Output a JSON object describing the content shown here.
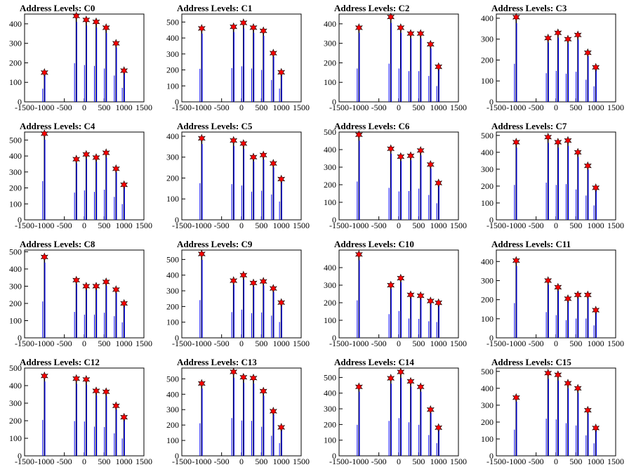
{
  "colors": {
    "histogram": "#0000ff",
    "marker": "#ff0000",
    "marker_outline": "#000000",
    "axes": "#000000",
    "background": "#ffffff"
  },
  "chart_data": [
    {
      "type": "histogram",
      "title": "Address Levels: C0",
      "xlim": [
        -1500,
        1500
      ],
      "ylim": [
        0,
        450
      ],
      "xticks": [
        -1500,
        -1000,
        -500,
        0,
        500,
        1000,
        1500
      ],
      "yticks": [
        0,
        100,
        200,
        300,
        400
      ],
      "peaks_x": [
        -1000,
        -200,
        50,
        300,
        550,
        800,
        1000
      ],
      "peaks_y": [
        150,
        440,
        420,
        410,
        380,
        300,
        160
      ],
      "spike_fraction": 0.45
    },
    {
      "type": "histogram",
      "title": "Address Levels: C1",
      "xlim": [
        -1500,
        1500
      ],
      "ylim": [
        0,
        550
      ],
      "xticks": [
        -1500,
        -1000,
        -500,
        0,
        500,
        1000,
        1500
      ],
      "yticks": [
        0,
        100,
        200,
        300,
        400,
        500
      ],
      "peaks_x": [
        -1000,
        -200,
        50,
        300,
        550,
        800,
        1000
      ],
      "peaks_y": [
        460,
        470,
        495,
        465,
        445,
        305,
        185
      ],
      "spike_fraction": 0.45
    },
    {
      "type": "histogram",
      "title": "Address Levels: C2",
      "xlim": [
        -1500,
        1500
      ],
      "ylim": [
        0,
        450
      ],
      "xticks": [
        -1500,
        -1000,
        -500,
        0,
        500,
        1000,
        1500
      ],
      "yticks": [
        0,
        100,
        200,
        300,
        400
      ],
      "peaks_x": [
        -1000,
        -200,
        50,
        300,
        550,
        800,
        1000
      ],
      "peaks_y": [
        380,
        435,
        380,
        350,
        350,
        295,
        180
      ],
      "spike_fraction": 0.45
    },
    {
      "type": "histogram",
      "title": "Address Levels: C3",
      "xlim": [
        -1500,
        1500
      ],
      "ylim": [
        0,
        420
      ],
      "xticks": [
        -1500,
        -1000,
        -500,
        0,
        500,
        1000,
        1500
      ],
      "yticks": [
        0,
        100,
        200,
        300,
        400
      ],
      "peaks_x": [
        -1000,
        -200,
        50,
        300,
        550,
        800,
        1000
      ],
      "peaks_y": [
        405,
        305,
        330,
        300,
        320,
        235,
        165
      ],
      "spike_fraction": 0.45
    },
    {
      "type": "histogram",
      "title": "Address Levels: C4",
      "xlim": [
        -1500,
        1500
      ],
      "ylim": [
        0,
        550
      ],
      "xticks": [
        -1500,
        -1000,
        -500,
        0,
        500,
        1000,
        1500
      ],
      "yticks": [
        0,
        100,
        200,
        300,
        400,
        500
      ],
      "peaks_x": [
        -1000,
        -200,
        50,
        300,
        550,
        800,
        1000
      ],
      "peaks_y": [
        540,
        380,
        410,
        390,
        420,
        320,
        220
      ],
      "spike_fraction": 0.45
    },
    {
      "type": "histogram",
      "title": "Address Levels: C5",
      "xlim": [
        -1500,
        1500
      ],
      "ylim": [
        0,
        420
      ],
      "xticks": [
        -1500,
        -1000,
        -500,
        0,
        500,
        1000,
        1500
      ],
      "yticks": [
        0,
        100,
        200,
        300,
        400
      ],
      "peaks_x": [
        -1000,
        -200,
        50,
        300,
        550,
        800,
        1000
      ],
      "peaks_y": [
        390,
        380,
        365,
        300,
        310,
        270,
        195
      ],
      "spike_fraction": 0.45
    },
    {
      "type": "histogram",
      "title": "Address Levels: C6",
      "xlim": [
        -1500,
        1500
      ],
      "ylim": [
        0,
        500
      ],
      "xticks": [
        -1500,
        -1000,
        -500,
        0,
        500,
        1000,
        1500
      ],
      "yticks": [
        0,
        100,
        200,
        300,
        400,
        500
      ],
      "peaks_x": [
        -1000,
        -200,
        50,
        300,
        550,
        800,
        1000
      ],
      "peaks_y": [
        485,
        405,
        360,
        365,
        395,
        315,
        210
      ],
      "spike_fraction": 0.45
    },
    {
      "type": "histogram",
      "title": "Address Levels: C7",
      "xlim": [
        -1500,
        1500
      ],
      "ylim": [
        0,
        520
      ],
      "xticks": [
        -1500,
        -1000,
        -500,
        0,
        500,
        1000,
        1500
      ],
      "yticks": [
        0,
        100,
        200,
        300,
        400,
        500
      ],
      "peaks_x": [
        -1000,
        -200,
        50,
        300,
        550,
        800,
        1000
      ],
      "peaks_y": [
        460,
        490,
        460,
        470,
        400,
        320,
        190
      ],
      "spike_fraction": 0.45
    },
    {
      "type": "histogram",
      "title": "Address Levels: C8",
      "xlim": [
        -1500,
        1500
      ],
      "ylim": [
        0,
        510
      ],
      "xticks": [
        -1500,
        -1000,
        -500,
        0,
        500,
        1000,
        1500
      ],
      "yticks": [
        0,
        100,
        200,
        300,
        400,
        500
      ],
      "peaks_x": [
        -1000,
        -200,
        50,
        300,
        550,
        800,
        1000
      ],
      "peaks_y": [
        470,
        335,
        300,
        300,
        325,
        280,
        200
      ],
      "spike_fraction": 0.45
    },
    {
      "type": "histogram",
      "title": "Address Levels: C9",
      "xlim": [
        -1500,
        1500
      ],
      "ylim": [
        0,
        560
      ],
      "xticks": [
        -1500,
        -1000,
        -500,
        0,
        500,
        1000,
        1500
      ],
      "yticks": [
        0,
        100,
        200,
        300,
        400,
        500
      ],
      "peaks_x": [
        -1000,
        -200,
        50,
        300,
        550,
        800,
        1000
      ],
      "peaks_y": [
        535,
        365,
        400,
        350,
        360,
        315,
        225
      ],
      "spike_fraction": 0.45
    },
    {
      "type": "histogram",
      "title": "Address Levels: C10",
      "xlim": [
        -1500,
        1500
      ],
      "ylim": [
        0,
        500
      ],
      "xticks": [
        -1500,
        -1000,
        -500,
        0,
        500,
        1000,
        1500
      ],
      "yticks": [
        0,
        100,
        200,
        300,
        400
      ],
      "peaks_x": [
        -1000,
        -200,
        50,
        300,
        550,
        800,
        1000
      ],
      "peaks_y": [
        475,
        300,
        340,
        245,
        240,
        210,
        200
      ],
      "spike_fraction": 0.45
    },
    {
      "type": "histogram",
      "title": "Address Levels: C11",
      "xlim": [
        -1500,
        1500
      ],
      "ylim": [
        0,
        460
      ],
      "xticks": [
        -1500,
        -1000,
        -500,
        0,
        500,
        1000,
        1500
      ],
      "yticks": [
        0,
        100,
        200,
        300,
        400
      ],
      "peaks_x": [
        -1000,
        -200,
        50,
        300,
        550,
        800,
        1000
      ],
      "peaks_y": [
        405,
        300,
        265,
        205,
        225,
        225,
        145
      ],
      "spike_fraction": 0.45
    },
    {
      "type": "histogram",
      "title": "Address Levels: C12",
      "xlim": [
        -1500,
        1500
      ],
      "ylim": [
        0,
        500
      ],
      "xticks": [
        -1500,
        -1000,
        -500,
        0,
        500,
        1000,
        1500
      ],
      "yticks": [
        0,
        100,
        200,
        300,
        400,
        500
      ],
      "peaks_x": [
        -1000,
        -200,
        50,
        300,
        550,
        800,
        1000
      ],
      "peaks_y": [
        455,
        440,
        435,
        370,
        365,
        285,
        220
      ],
      "spike_fraction": 0.45
    },
    {
      "type": "histogram",
      "title": "Address Levels: C13",
      "xlim": [
        -1500,
        1500
      ],
      "ylim": [
        0,
        570
      ],
      "xticks": [
        -1500,
        -1000,
        -500,
        0,
        500,
        1000,
        1500
      ],
      "yticks": [
        0,
        100,
        200,
        300,
        400,
        500
      ],
      "peaks_x": [
        -1000,
        -200,
        50,
        300,
        550,
        800,
        1000
      ],
      "peaks_y": [
        470,
        545,
        510,
        505,
        420,
        290,
        185
      ],
      "spike_fraction": 0.45
    },
    {
      "type": "histogram",
      "title": "Address Levels: C14",
      "xlim": [
        -1500,
        1500
      ],
      "ylim": [
        0,
        560
      ],
      "xticks": [
        -1500,
        -1000,
        -500,
        0,
        500,
        1000,
        1500
      ],
      "yticks": [
        0,
        100,
        200,
        300,
        400,
        500
      ],
      "peaks_x": [
        -1000,
        -200,
        50,
        300,
        550,
        800,
        1000
      ],
      "peaks_y": [
        440,
        495,
        535,
        475,
        440,
        295,
        180
      ],
      "spike_fraction": 0.45
    },
    {
      "type": "histogram",
      "title": "Address Levels: C15",
      "xlim": [
        -1500,
        1500
      ],
      "ylim": [
        0,
        520
      ],
      "xticks": [
        -1500,
        -1000,
        -500,
        0,
        500,
        1000,
        1500
      ],
      "yticks": [
        0,
        100,
        200,
        300,
        400,
        500
      ],
      "peaks_x": [
        -1000,
        -200,
        50,
        300,
        550,
        800,
        1000
      ],
      "peaks_y": [
        345,
        490,
        480,
        430,
        400,
        270,
        165
      ],
      "spike_fraction": 0.45
    }
  ]
}
